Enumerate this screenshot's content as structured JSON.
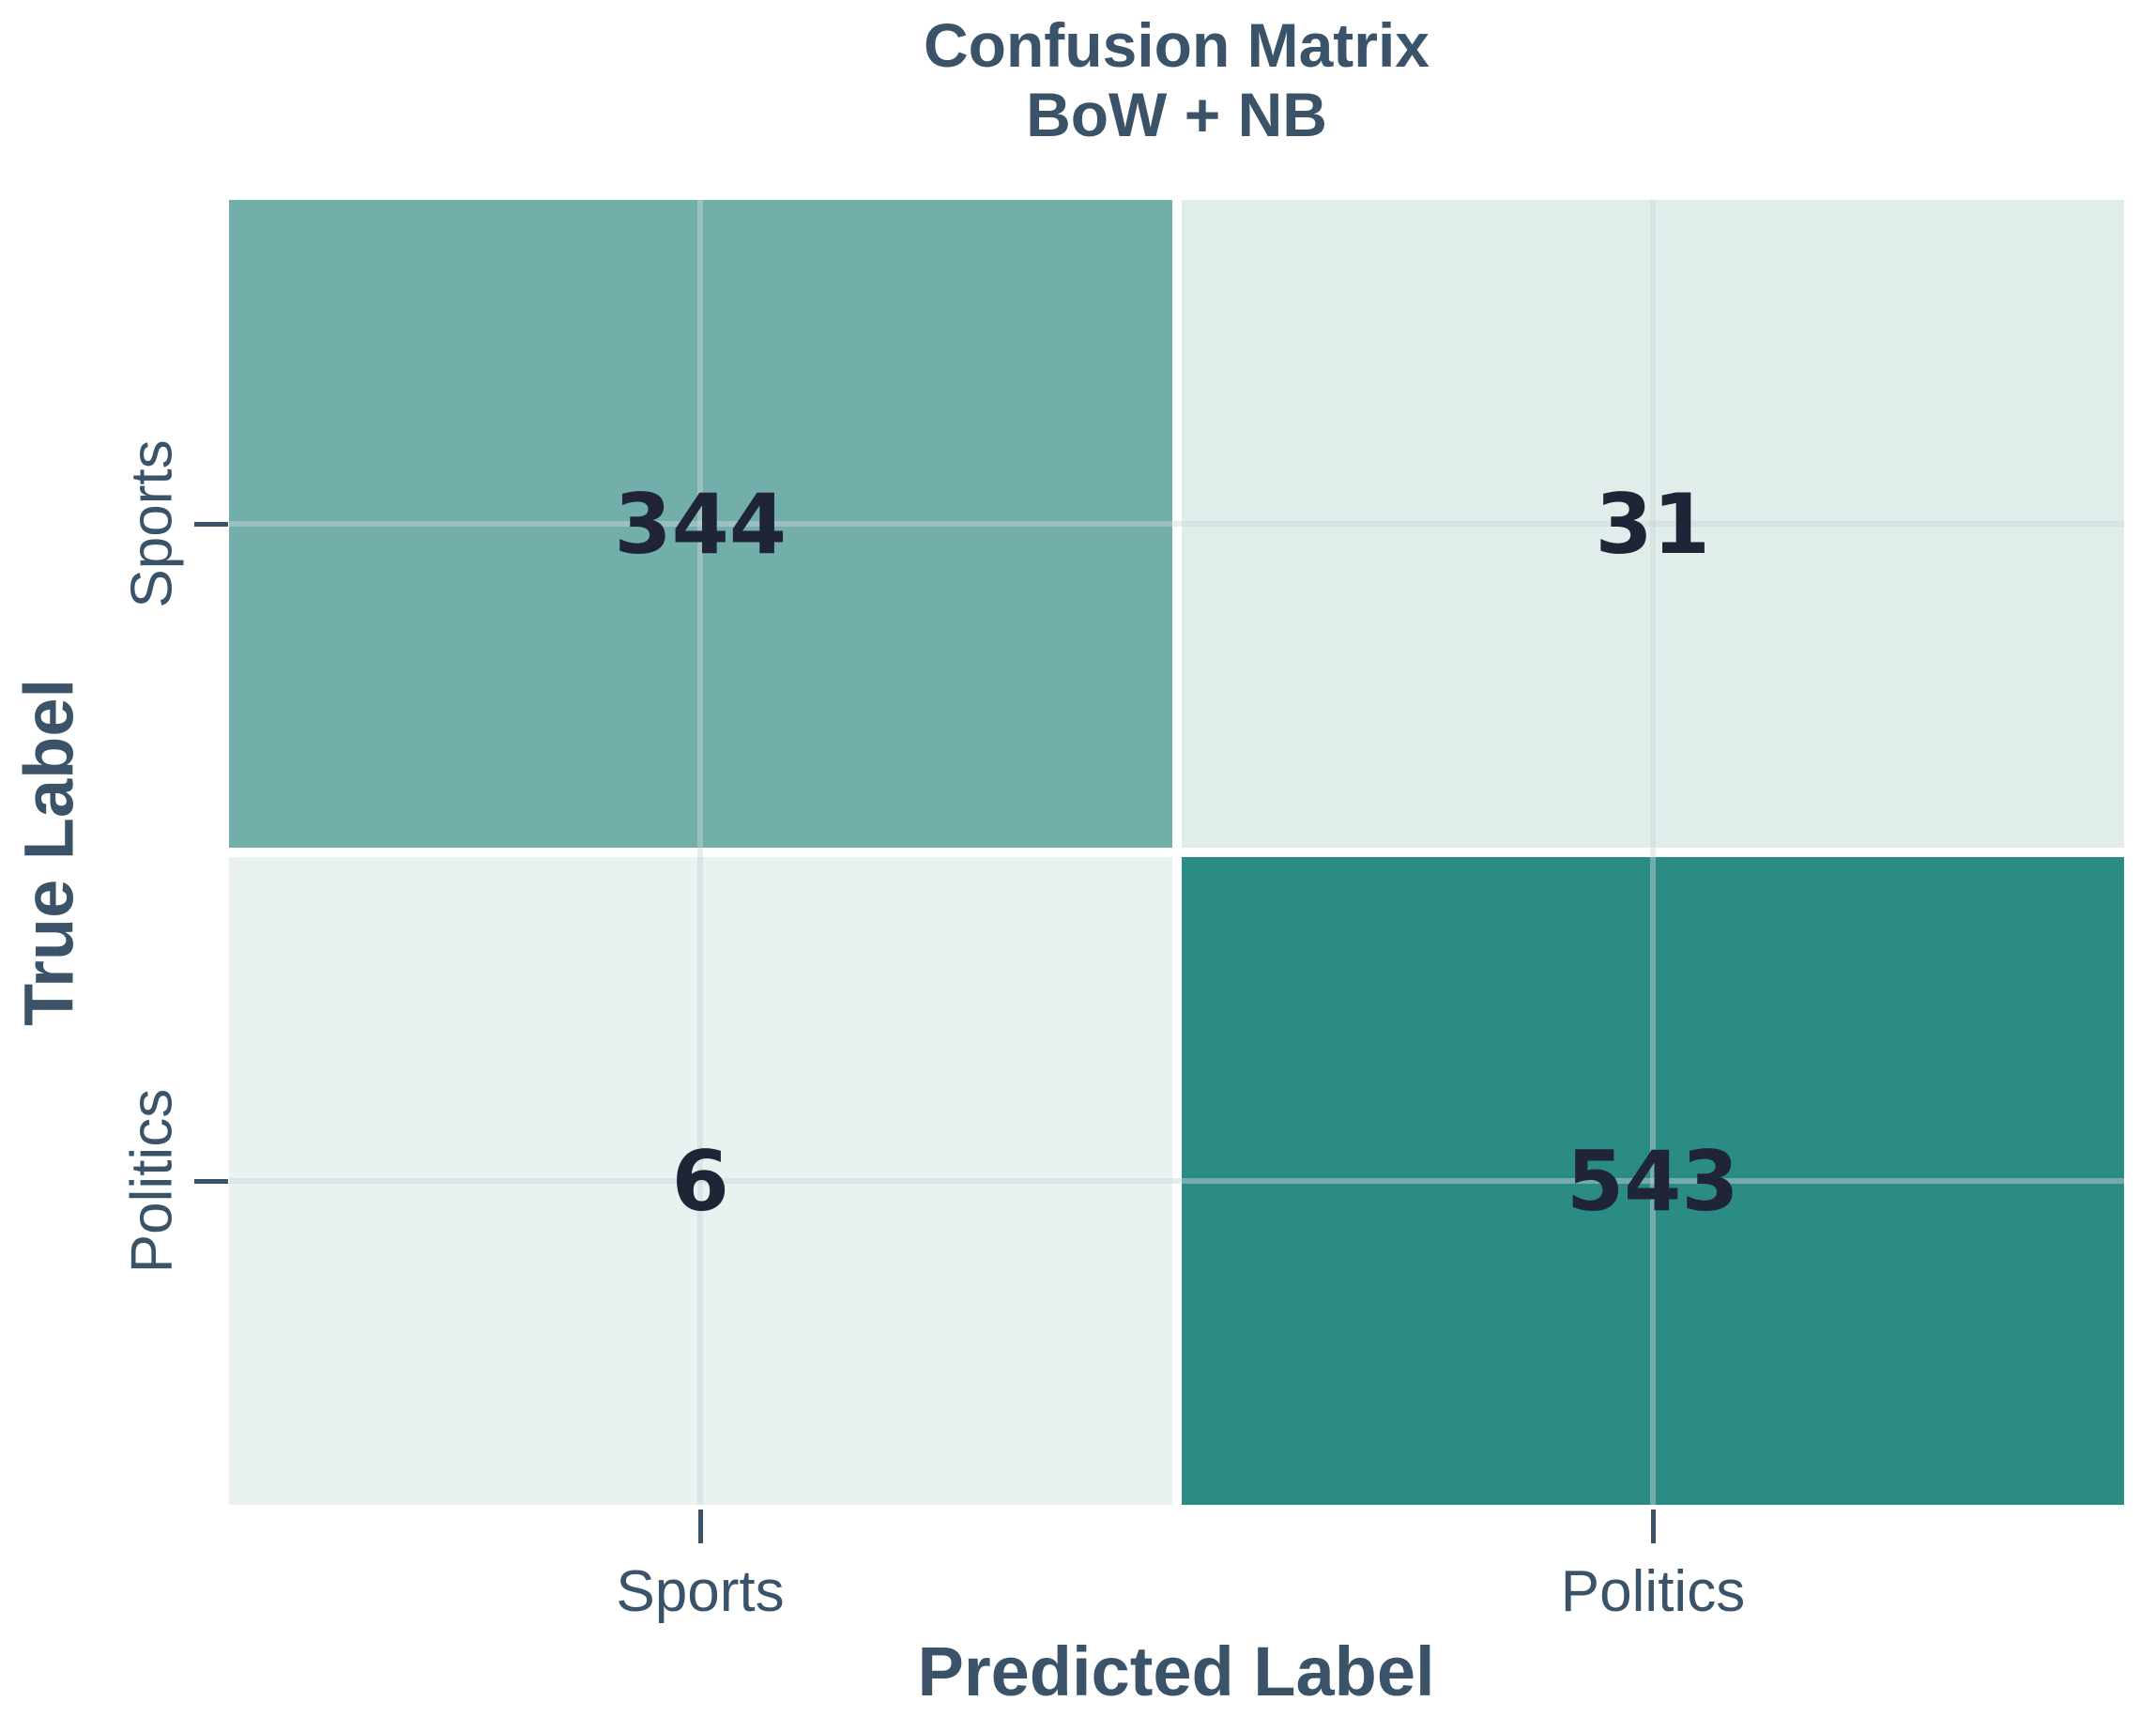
{
  "chart_data": {
    "type": "heatmap",
    "title": "Confusion Matrix\nBoW + NB",
    "title_line1": "Confusion Matrix",
    "title_line2": "BoW + NB",
    "xlabel": "Predicted Label",
    "ylabel": "True Label",
    "x_categories": [
      "Sports",
      "Politics"
    ],
    "y_categories": [
      "Sports",
      "Politics"
    ],
    "matrix": [
      [
        344,
        31
      ],
      [
        6,
        543
      ]
    ],
    "cells": [
      {
        "true_label": "Sports",
        "predicted_label": "Sports",
        "value": 344,
        "color": "#72afab"
      },
      {
        "true_label": "Sports",
        "predicted_label": "Politics",
        "value": 31,
        "color": "#e1edeb"
      },
      {
        "true_label": "Politics",
        "predicted_label": "Sports",
        "value": 6,
        "color": "#e9f2f0"
      },
      {
        "true_label": "Politics",
        "predicted_label": "Politics",
        "value": 543,
        "color": "#2b8b85"
      }
    ],
    "grid": true,
    "legend": false,
    "colormap": {
      "min_color": "#e9f2f0",
      "max_color": "#2b8b85"
    },
    "colors": {
      "label_text": "#3b5368",
      "value_text": "#1f2436",
      "gridline": "#cbd5d6",
      "background": "#ffffff"
    }
  }
}
